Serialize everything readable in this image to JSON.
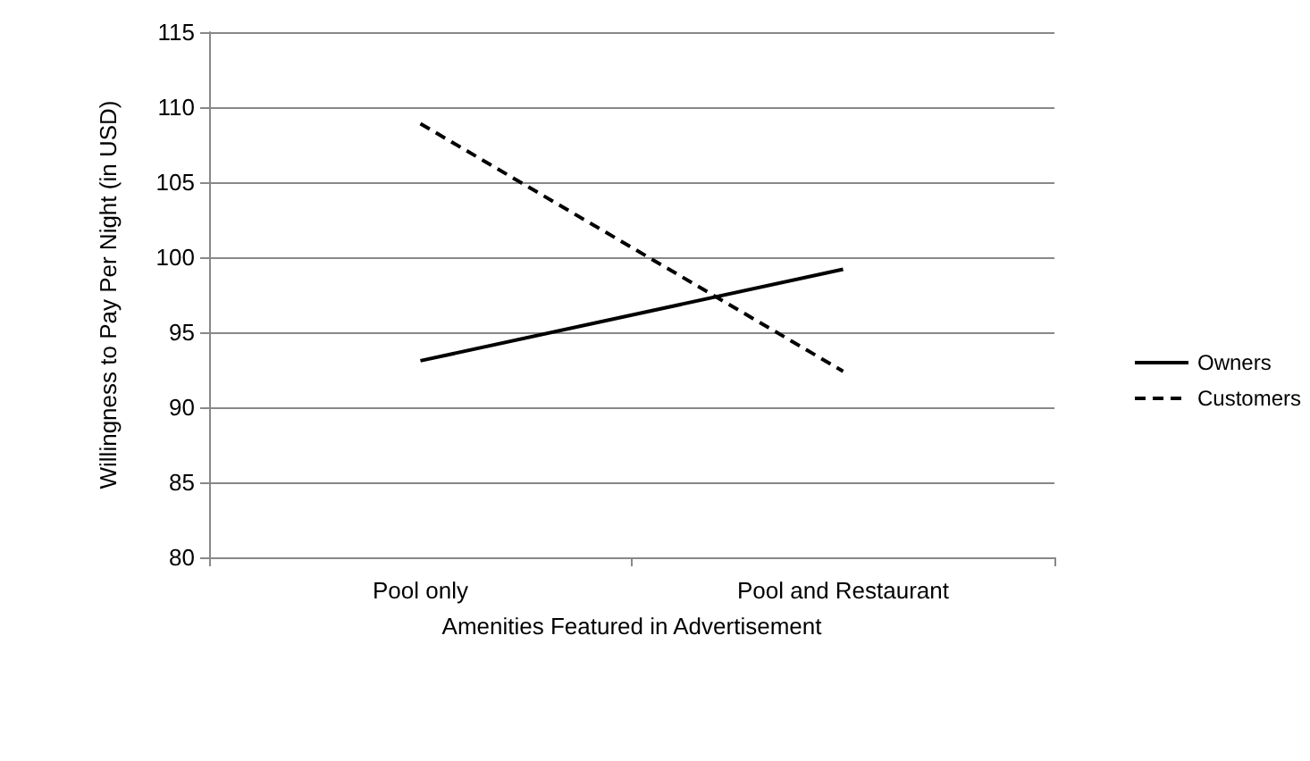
{
  "chart_data": {
    "type": "line",
    "xlabel": "Amenities Featured in Advertisement",
    "ylabel": "Willingness to Pay Per Night (in USD)",
    "categories": [
      "Pool only",
      "Pool and Restaurant"
    ],
    "series": [
      {
        "name": "Owners",
        "color": "#000000",
        "line_style": "solid",
        "values": [
          93.1,
          99.2
        ]
      },
      {
        "name": "Customers",
        "color": "#000000",
        "line_style": "dashed",
        "values": [
          108.9,
          92.4
        ]
      }
    ],
    "ylim": [
      80,
      115
    ],
    "yticks": [
      80,
      85,
      90,
      95,
      100,
      105,
      110,
      115
    ],
    "grid": "y",
    "legend": "right",
    "marker": "none"
  }
}
